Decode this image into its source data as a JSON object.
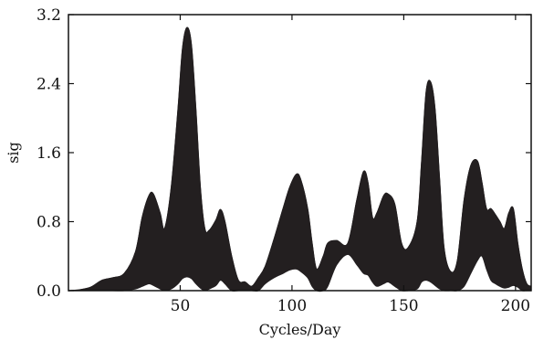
{
  "chart_data": {
    "type": "area",
    "title": "",
    "xlabel": "Cycles/Day",
    "ylabel": "sig",
    "xlim": [
      0,
      207
    ],
    "ylim": [
      0,
      3.2
    ],
    "x_ticks": [
      50,
      100,
      150,
      200
    ],
    "x_tick_labels": [
      "50",
      "100",
      "150",
      "200"
    ],
    "y_ticks": [
      0.0,
      0.8,
      1.6,
      2.4,
      3.2
    ],
    "y_tick_labels": [
      "0.0",
      "0.8",
      "1.6",
      "2.4",
      "3.2"
    ],
    "grid": false,
    "fill_color": "#231f20",
    "series": [
      {
        "role": "upper",
        "x": [
          0,
          5,
          10,
          15,
          20,
          25,
          30,
          33,
          36,
          38,
          41,
          43,
          46,
          49,
          51,
          53,
          55,
          57,
          59,
          61,
          63,
          66,
          68,
          70,
          73,
          76,
          79,
          82,
          85,
          88,
          92,
          96,
          99,
          102,
          104,
          107,
          109,
          111,
          114,
          116,
          120,
          125,
          129,
          132,
          134,
          136,
          138,
          141,
          143,
          146,
          149,
          152,
          156,
          158,
          160,
          162,
          164,
          166,
          168,
          171,
          174,
          177,
          180,
          183,
          185,
          187,
          189,
          191,
          193,
          195,
          197,
          199,
          201,
          203,
          205,
          207
        ],
        "values": [
          0.0,
          0.01,
          0.04,
          0.12,
          0.15,
          0.2,
          0.45,
          0.85,
          1.1,
          1.12,
          0.9,
          0.72,
          1.2,
          2.1,
          2.8,
          3.05,
          2.85,
          2.1,
          1.2,
          0.72,
          0.7,
          0.82,
          0.94,
          0.8,
          0.4,
          0.12,
          0.1,
          0.05,
          0.15,
          0.28,
          0.6,
          0.95,
          1.2,
          1.35,
          1.28,
          0.95,
          0.55,
          0.25,
          0.4,
          0.55,
          0.58,
          0.55,
          1.05,
          1.38,
          1.25,
          0.85,
          0.9,
          1.1,
          1.12,
          1.0,
          0.55,
          0.5,
          0.8,
          1.5,
          2.3,
          2.42,
          2.1,
          1.3,
          0.5,
          0.22,
          0.35,
          1.05,
          1.45,
          1.5,
          1.25,
          0.95,
          0.95,
          0.88,
          0.8,
          0.72,
          0.9,
          0.95,
          0.55,
          0.25,
          0.08,
          0.05
        ]
      },
      {
        "role": "lower",
        "x": [
          0,
          5,
          10,
          15,
          20,
          25,
          30,
          33,
          36,
          38,
          41,
          43,
          46,
          49,
          51,
          53,
          55,
          57,
          59,
          61,
          63,
          66,
          68,
          70,
          73,
          76,
          79,
          82,
          85,
          88,
          92,
          96,
          99,
          102,
          104,
          107,
          109,
          111,
          114,
          116,
          120,
          125,
          129,
          132,
          134,
          136,
          138,
          141,
          143,
          146,
          149,
          152,
          156,
          158,
          160,
          162,
          164,
          166,
          168,
          171,
          174,
          177,
          180,
          183,
          185,
          187,
          189,
          191,
          193,
          195,
          197,
          199,
          201,
          203,
          205,
          207
        ],
        "values": [
          0.0,
          0.0,
          0.0,
          0.0,
          0.0,
          0.0,
          0.02,
          0.05,
          0.08,
          0.06,
          0.02,
          0.0,
          0.02,
          0.08,
          0.14,
          0.16,
          0.14,
          0.08,
          0.03,
          0.0,
          0.02,
          0.06,
          0.12,
          0.08,
          0.0,
          0.0,
          0.0,
          0.0,
          0.0,
          0.08,
          0.15,
          0.2,
          0.24,
          0.25,
          0.22,
          0.15,
          0.05,
          0.0,
          0.0,
          0.05,
          0.3,
          0.42,
          0.3,
          0.2,
          0.18,
          0.1,
          0.05,
          0.08,
          0.1,
          0.05,
          0.0,
          0.0,
          0.02,
          0.1,
          0.12,
          0.1,
          0.06,
          0.02,
          0.0,
          0.0,
          0.0,
          0.05,
          0.2,
          0.35,
          0.4,
          0.25,
          0.12,
          0.08,
          0.05,
          0.03,
          0.04,
          0.06,
          0.04,
          0.0,
          0.0,
          0.0
        ]
      }
    ]
  }
}
